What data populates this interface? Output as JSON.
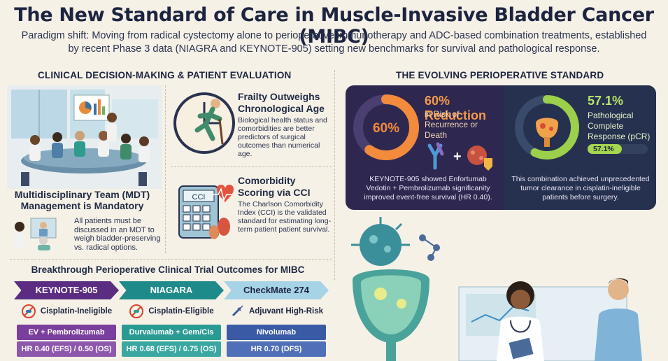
{
  "header": {
    "title": "The New Standard of Care in Muscle-Invasive Bladder Cancer (MIBC)",
    "subtitle": "Paradigm shift: Moving from radical cystectomy alone to perioperative immunotherapy and ADC-based combination treatments, established by recent Phase 3 data (NIAGRA and KEYNOTE-905) setting new benchmarks for survival and pathological response."
  },
  "left_section": {
    "title": "CLINICAL DECISION-MAKING & PATIENT EVALUATION",
    "mdt": {
      "title": "Multidisciplinary Team (MDT) Management is Mandatory",
      "text": "All patients must be discussed in an MDT to weigh bladder-preserving vs. radical options."
    },
    "frailty": {
      "title": "Frailty Outweighs Chronological Age",
      "text": "Biological health status and comorbidities are better predictors of surgical outcomes than numerical age."
    },
    "cci": {
      "title": "Comorbidity Scoring via CCI",
      "icon_label": "CCI",
      "text": "The Charlson Comorbidity Index (CCI) is the validated standard for estimating long-term patient patient survival."
    }
  },
  "trials": {
    "title": "Breakthrough Perioperative Clinical Trial Outcomes for MIBC",
    "items": [
      {
        "name": "KEYNOTE-905",
        "population": "Cisplatin-Ineligible",
        "treatment": "EV + Pembrolizumab",
        "hr": "HR 0.40 (EFS) / 0.50 (OS)",
        "color": "#5b2d82",
        "tx_color": "#7a3e9d"
      },
      {
        "name": "NIAGARA",
        "population": "Cisplatin-Eligible",
        "treatment": "Durvalumab + Gem/Cis",
        "hr": "HR 0.68 (EFS) / 0.75 (OS)",
        "color": "#1f8a8a",
        "tx_color": "#2a9b93"
      },
      {
        "name": "CheckMate 274",
        "population": "Adjuvant High-Risk",
        "treatment": "Nivolumab",
        "hr": "HR 0.70 (DFS)",
        "color": "#a7d3e6",
        "tx_color": "#3b5aa6"
      }
    ]
  },
  "right_section": {
    "title": "THE EVOLVING PERIOPERATIVE STANDARD",
    "kpi_recurrence": {
      "ring_value": "60%",
      "value": "60% Reduction",
      "label": "in Risk of Recurrence or Death",
      "percent": 60,
      "caption": "KEYNOTE-905 showed Enfortumab Vedotin + Pembrolizumab significanity improved event-free survival (HR 0.40)."
    },
    "kpi_pcr": {
      "value": "57.1%",
      "label": "Pathological Complete Response (pCR)",
      "bar_label": "57.1%",
      "percent": 57.1,
      "caption": "This combination achieved unprecedented tumor clearance in cisplatin-ineligible patients before surgery."
    }
  },
  "colors": {
    "accent_orange": "#f28b3b",
    "accent_green": "#a5d64f",
    "panel": "#2e2750"
  }
}
